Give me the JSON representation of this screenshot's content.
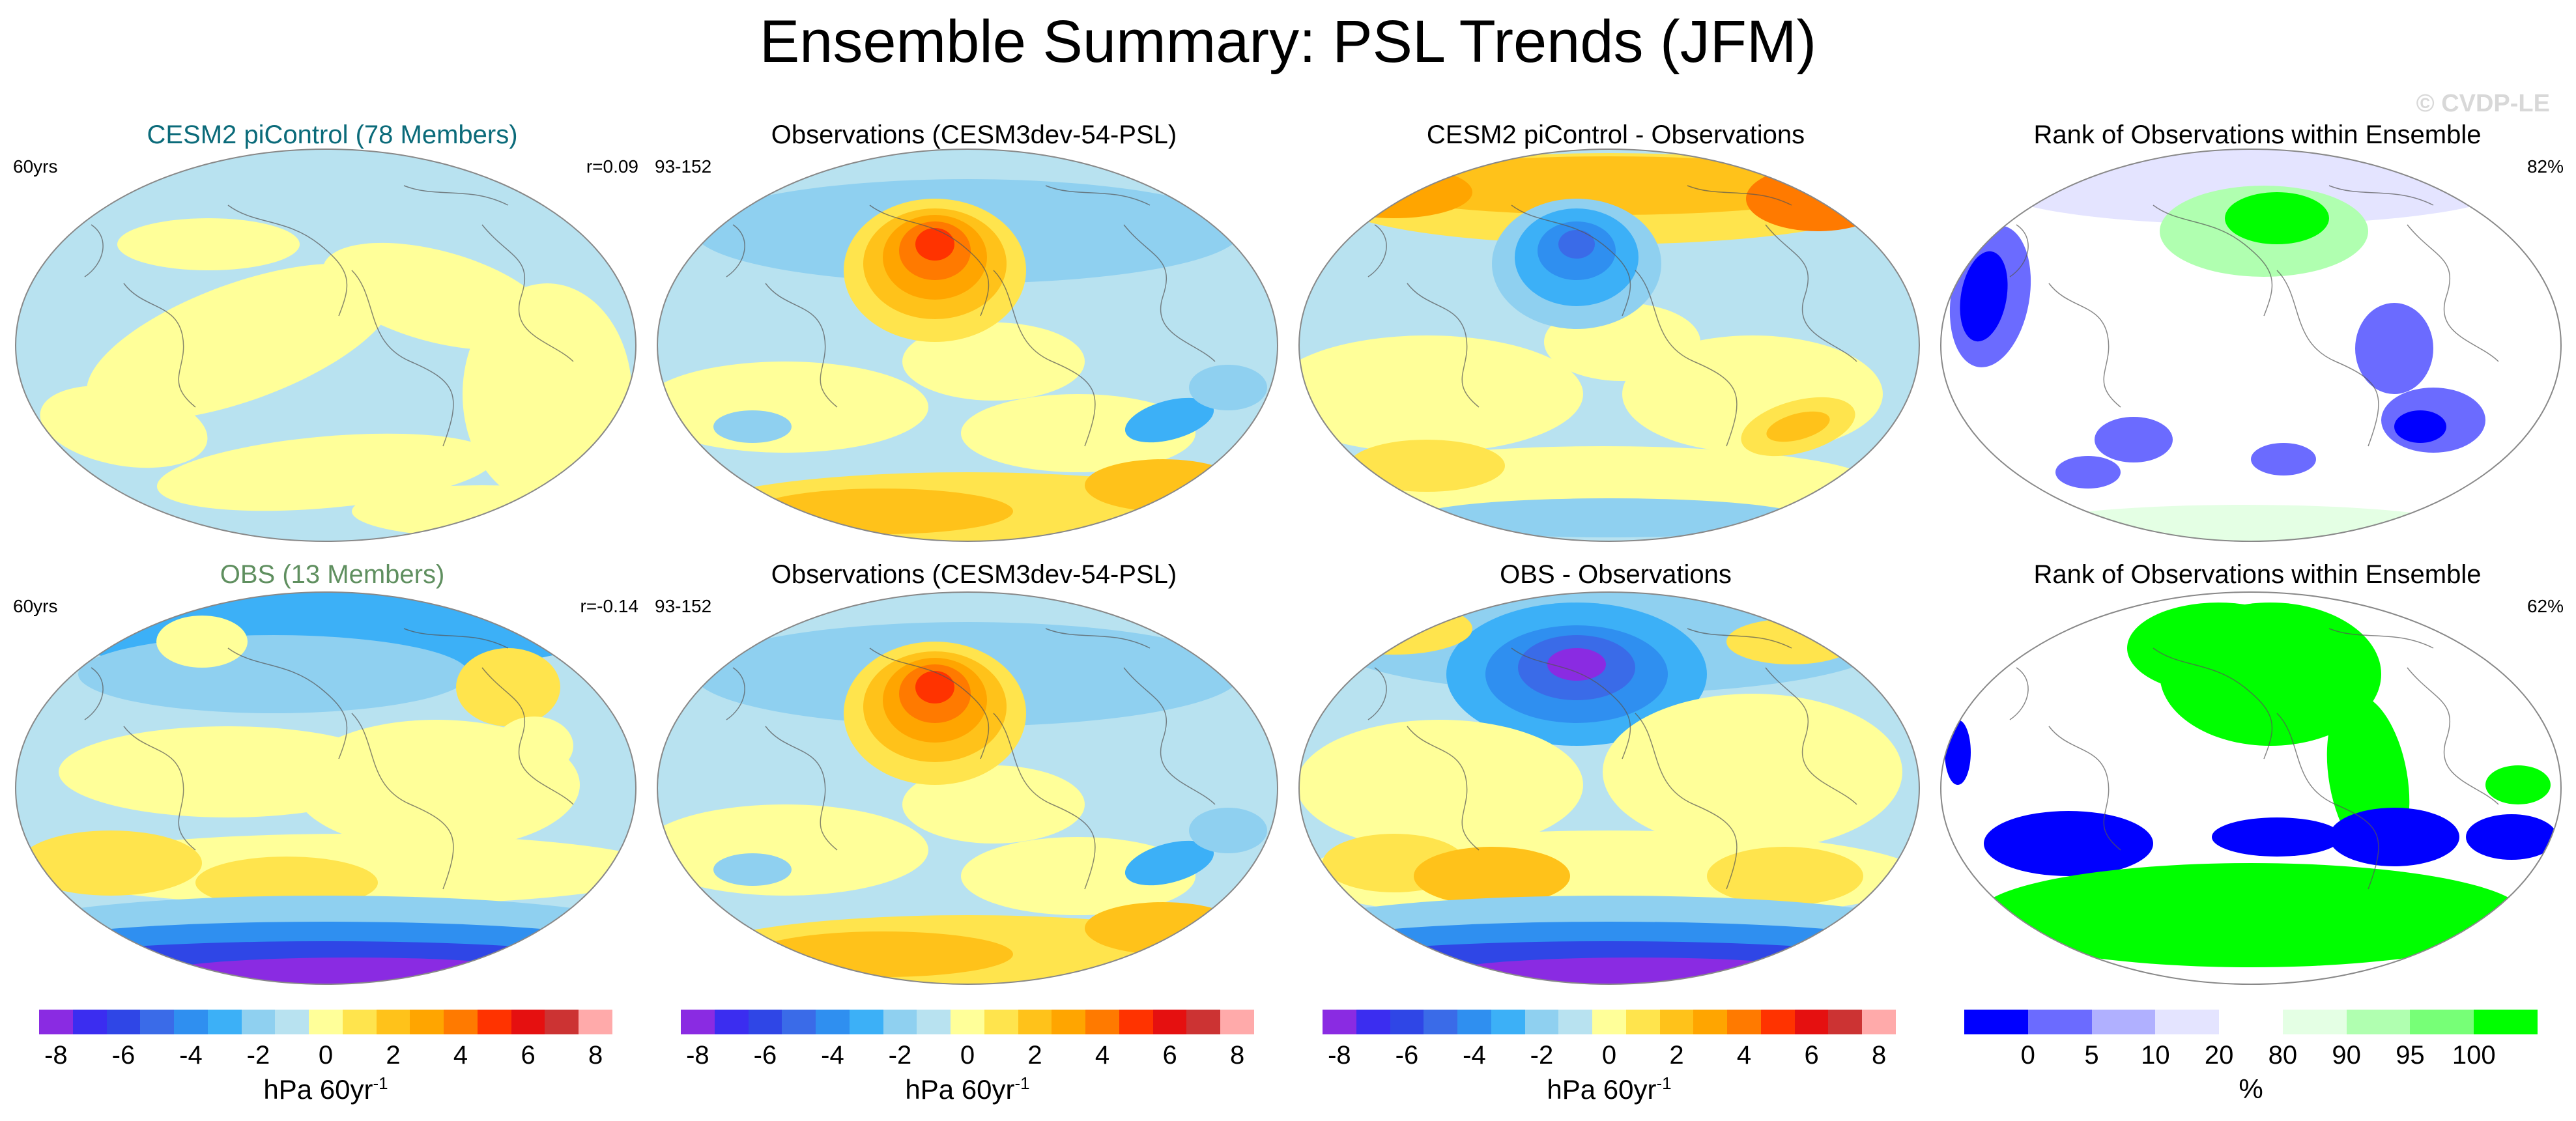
{
  "figure": {
    "title": "Ensemble Summary: PSL Trends (JFM)",
    "watermark": "© CVDP-LE"
  },
  "panels": [
    {
      "title": "CESM2 piControl (78 Members)",
      "title_color": "#0b6b7a",
      "left_label": "60yrs",
      "right_label": "r=0.09",
      "style": "cesm2"
    },
    {
      "title": "Observations (CESM3dev-54-PSL)",
      "title_color": "#000000",
      "left_label": "93-152",
      "right_label": "",
      "style": "obs"
    },
    {
      "title": "CESM2 piControl - Observations",
      "title_color": "#000000",
      "left_label": "",
      "right_label": "",
      "style": "diff1"
    },
    {
      "title": "Rank of Observations within Ensemble",
      "title_color": "#000000",
      "left_label": "",
      "right_label": "82%",
      "style": "rank1"
    },
    {
      "title": "OBS (13 Members)",
      "title_color": "#5f8f5f",
      "left_label": "60yrs",
      "right_label": "r=-0.14",
      "style": "obsens"
    },
    {
      "title": "Observations (CESM3dev-54-PSL)",
      "title_color": "#000000",
      "left_label": "93-152",
      "right_label": "",
      "style": "obs"
    },
    {
      "title": "OBS - Observations",
      "title_color": "#000000",
      "left_label": "",
      "right_label": "",
      "style": "diff2"
    },
    {
      "title": "Rank of Observations within Ensemble",
      "title_color": "#000000",
      "left_label": "",
      "right_label": "62%",
      "style": "rank2"
    }
  ],
  "colorbars": [
    {
      "type": "trend",
      "colors": [
        "#8a2be2",
        "#3b2df0",
        "#2f46e6",
        "#3a6be8",
        "#2f8ff0",
        "#3cb0f7",
        "#8fd0f0",
        "#b8e2f0",
        "#ffff99",
        "#ffe44d",
        "#ffc21a",
        "#ffa500",
        "#ff7a00",
        "#ff3300",
        "#e51010",
        "#cc3333",
        "#ffaaaa"
      ],
      "ticks": [
        "-8",
        "-6",
        "-4",
        "-2",
        "0",
        "2",
        "4",
        "6",
        "8"
      ],
      "units_base": "hPa 60yr",
      "units_sup": "-1"
    },
    {
      "type": "rank",
      "colors": [
        "#0000ff",
        "#6b6bff",
        "#b0b0ff",
        "#e4e4ff",
        "#ffffff",
        "#e4ffe4",
        "#b0ffb0",
        "#77ff77",
        "#00ff00"
      ],
      "ticks": [
        "0",
        "5",
        "10",
        "20",
        "80",
        "90",
        "95",
        "100"
      ],
      "units_base": "%",
      "units_sup": ""
    }
  ]
}
